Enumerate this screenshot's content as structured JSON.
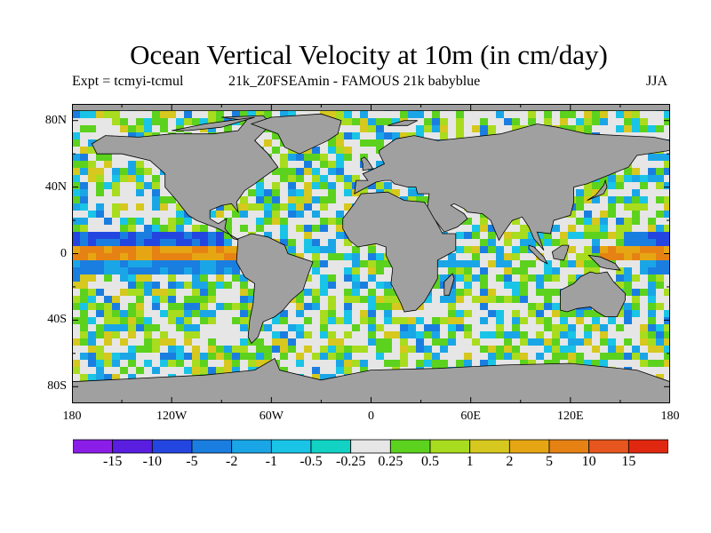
{
  "title": "Ocean Vertical Velocity at 10m (in cm/day)",
  "subtitle": {
    "left": "Expt = tcmyi-tcmul",
    "middle": "21k_Z0FSEAmin - FAMOUS 21k babyblue",
    "right": "JJA"
  },
  "axes": {
    "y_ticks": [
      {
        "label": "80N",
        "value": 80
      },
      {
        "label": "40N",
        "value": 40
      },
      {
        "label": "0",
        "value": 0
      },
      {
        "label": "40S",
        "value": -40
      },
      {
        "label": "80S",
        "value": -80
      }
    ],
    "x_ticks": [
      {
        "label": "180",
        "value": -180
      },
      {
        "label": "120W",
        "value": -120
      },
      {
        "label": "60W",
        "value": -60
      },
      {
        "label": "0",
        "value": 0
      },
      {
        "label": "60E",
        "value": 60
      },
      {
        "label": "120E",
        "value": 120
      },
      {
        "label": "180",
        "value": 180
      }
    ],
    "lon_range": [
      -180,
      180
    ],
    "lat_range": [
      -90,
      90
    ]
  },
  "colorbar": {
    "colors": [
      "#8a1ee8",
      "#5a1ee0",
      "#2446e0",
      "#1a7ee0",
      "#1aa6e6",
      "#19c4e6",
      "#12d2c4",
      "#e6e6e6",
      "#5cd21e",
      "#a8dc1e",
      "#d6c81e",
      "#e6a614",
      "#e68214",
      "#e6561e",
      "#e02810"
    ],
    "labels": [
      "-15",
      "-10",
      "-5",
      "-2",
      "-1",
      "-0.5",
      "-0.25",
      "0.25",
      "0.5",
      "1",
      "2",
      "5",
      "10",
      "15"
    ]
  },
  "colors": {
    "land": "#a0a0a0",
    "coastline": "#000000",
    "neutral": "#e6e6e6"
  }
}
